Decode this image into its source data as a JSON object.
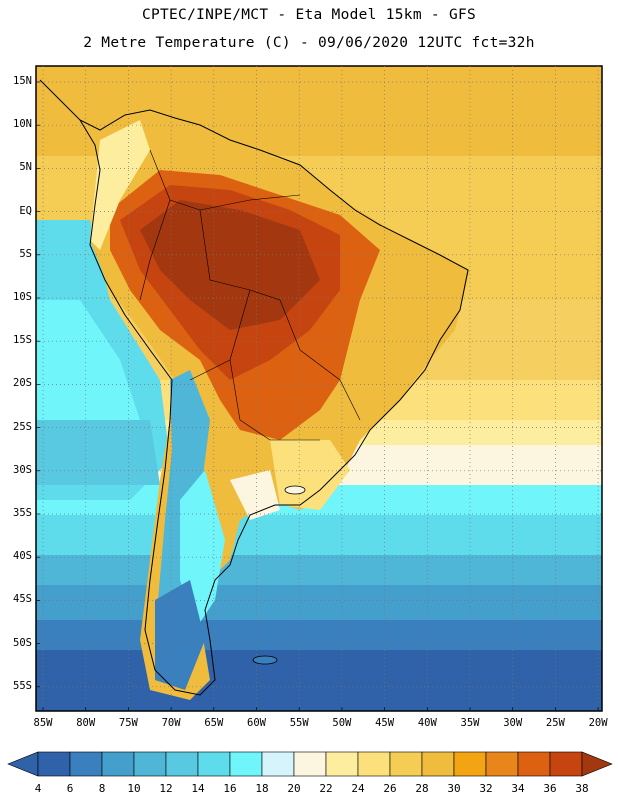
{
  "header": {
    "line1": "CPTEC/INPE/MCT -  Eta Model 15km - GFS",
    "line2": "2 Metre Temperature (C) - 09/06/2020 12UTC fct=32h"
  },
  "lat_labels": [
    "15N",
    "10N",
    "5N",
    "EQ",
    "5S",
    "10S",
    "15S",
    "20S",
    "25S",
    "30S",
    "35S",
    "40S",
    "45S",
    "50S",
    "55S"
  ],
  "lon_labels": [
    "85W",
    "80W",
    "75W",
    "70W",
    "65W",
    "60W",
    "55W",
    "50W",
    "45W",
    "40W",
    "35W",
    "30W",
    "25W",
    "20W"
  ],
  "colorbar": {
    "labels": [
      "4",
      "6",
      "8",
      "10",
      "12",
      "14",
      "16",
      "18",
      "20",
      "22",
      "24",
      "26",
      "28",
      "30",
      "32",
      "34",
      "36",
      "38"
    ],
    "colors": [
      "#2f62a8",
      "#3a7fbe",
      "#459fcc",
      "#4fb6d8",
      "#58c9e0",
      "#5fdcec",
      "#6ff5fa",
      "#d6f4fb",
      "#fcf6e0",
      "#fcee9e",
      "#fbe07c",
      "#f5cc54",
      "#efbc3e",
      "#f2a412",
      "#e8861c",
      "#dc6212",
      "#c54410",
      "#a33810"
    ]
  },
  "colors": {
    "ocean_cold": "#2f62a8",
    "ocean_cool": "#459fcc",
    "ocean_mild": "#5fdcec",
    "land_hot": "#a33810",
    "land_warm": "#dc6212",
    "subtropical_sea": "#f5cc54"
  }
}
